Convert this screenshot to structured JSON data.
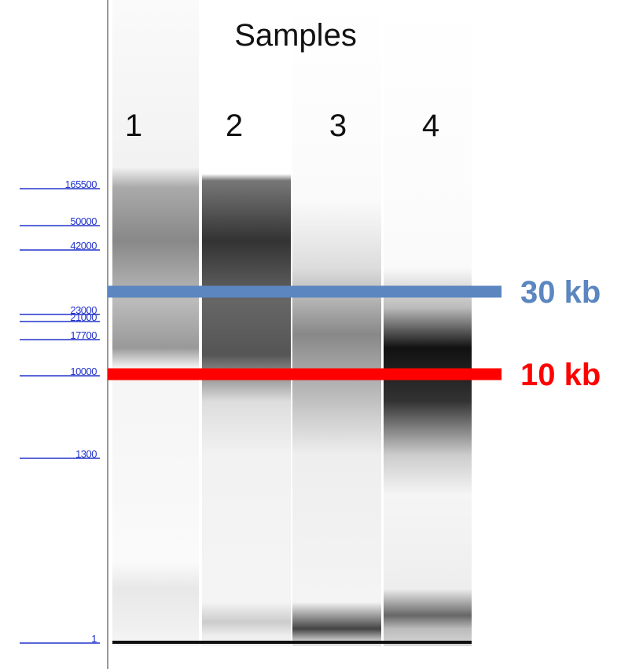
{
  "header": {
    "title": "Samples"
  },
  "lanes": [
    "1",
    "2",
    "3",
    "4"
  ],
  "ladder": [
    "165500",
    "50000",
    "42000",
    "23000",
    "21000",
    "17700",
    "10000",
    "1300",
    "1"
  ],
  "markers": [
    {
      "label": "30 kb",
      "color": "#5b86c0"
    },
    {
      "label": "10 kb",
      "color": "#ff0000"
    }
  ]
}
